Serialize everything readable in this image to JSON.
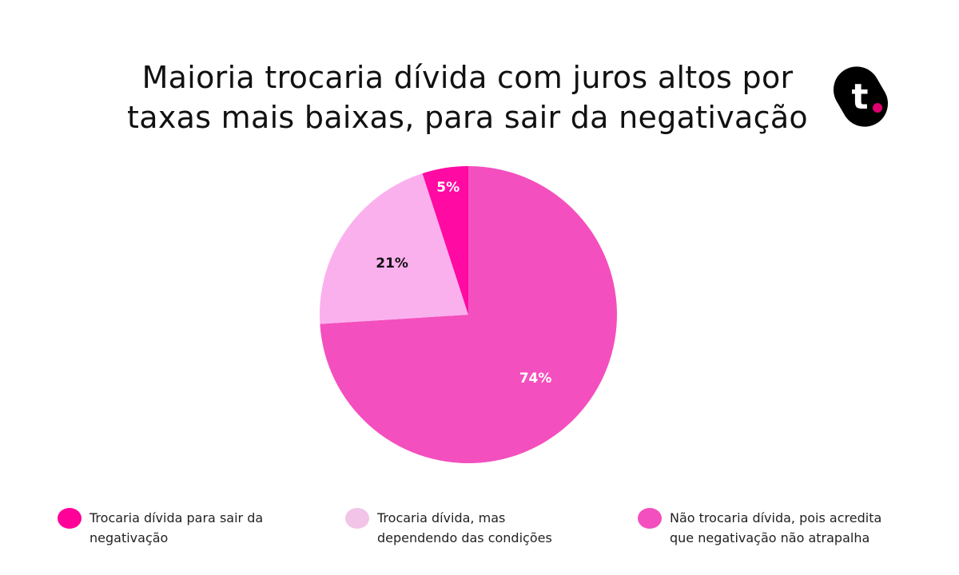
{
  "title_lines": [
    "Maioria trocaria dívida com juros altos por",
    "taxas mais baixas, para sair da negativação"
  ],
  "logo": {
    "letter": "t",
    "bg": "#000000",
    "dot": "#E0006F"
  },
  "chart_data": {
    "type": "pie",
    "title": "Maioria trocaria dívida com juros altos por taxas mais baixas, para sair da negativação",
    "start_angle": "top",
    "direction": "counterclockwise-from-small-slice",
    "slices": [
      {
        "label": "Trocaria dívida para sair da negativação",
        "value": 5,
        "data_label": "5%",
        "color": "#FF0AA3",
        "label_color": "#ffffff",
        "legend_color": "#FF0099"
      },
      {
        "label": "Trocaria dívida, mas dependendo das condições",
        "value": 21,
        "data_label": "21%",
        "color": "#FBB0EE",
        "label_color": "#111111",
        "legend_color": "#F2C4E8"
      },
      {
        "label": "Não trocaria dívida, pois acredita que negativação não atrapalha",
        "value": 74,
        "data_label": "74%",
        "color": "#F44FBE",
        "label_color": "#ffffff",
        "legend_color": "#F44FBE"
      }
    ],
    "legend": {
      "placement": "bottom",
      "items": [
        [
          "Trocaria dívida para sair da",
          "negativação"
        ],
        [
          "Trocaria dívida, mas",
          "dependendo das condições"
        ],
        [
          "Não trocaria dívida, pois acredita",
          "que negativação não atrapalha"
        ]
      ]
    }
  }
}
